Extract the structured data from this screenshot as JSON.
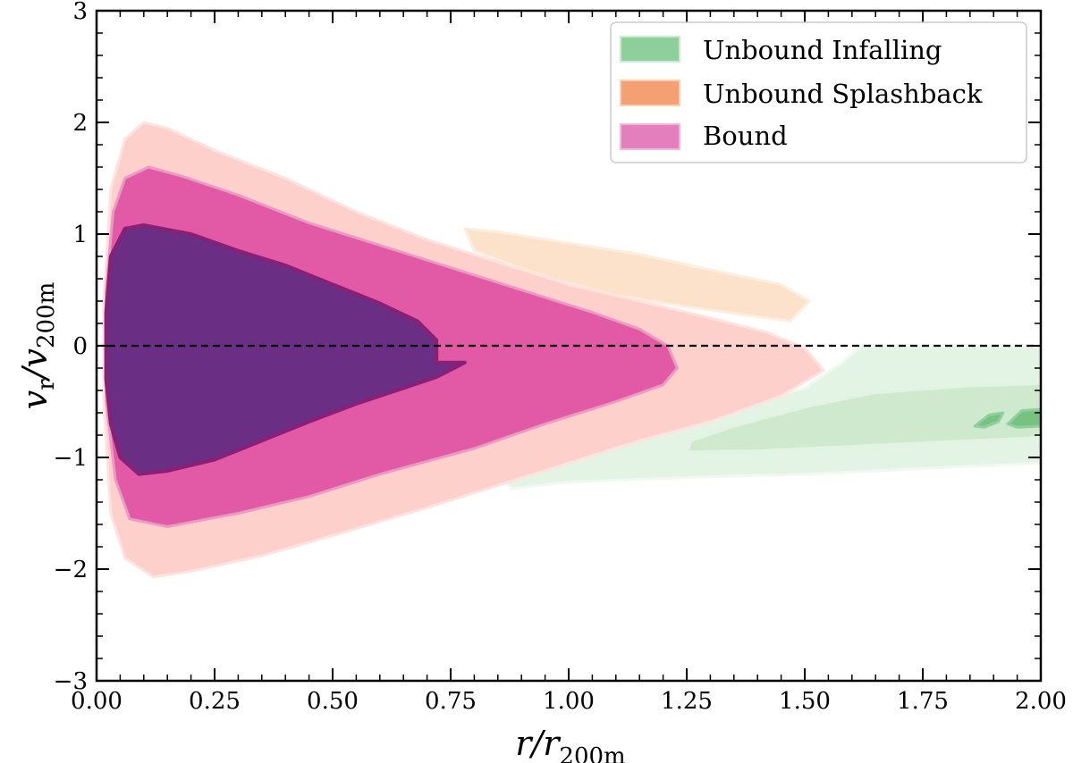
{
  "chart_data": {
    "type": "contour",
    "title": "",
    "xlabel": {
      "main": "r/r",
      "sub": "200m"
    },
    "ylabel": {
      "main": "v",
      "sub_r": "r",
      "slash": "/v",
      "sub_v": "200m"
    },
    "xlim": [
      0.0,
      2.0
    ],
    "ylim": [
      -3,
      3
    ],
    "xticks": [
      0.0,
      0.25,
      0.5,
      0.75,
      1.0,
      1.25,
      1.5,
      1.75,
      2.0
    ],
    "xtick_labels": [
      "0.00",
      "0.25",
      "0.50",
      "0.75",
      "1.00",
      "1.25",
      "1.50",
      "1.75",
      "2.00"
    ],
    "yticks": [
      -3,
      -2,
      -1,
      0,
      1,
      2,
      3
    ],
    "ytick_labels": [
      "−3",
      "−2",
      "−1",
      "0",
      "1",
      "2",
      "3"
    ],
    "reference_line": {
      "y": 0,
      "style": "dashed",
      "color": "#000000"
    },
    "legend": {
      "position": "top-right",
      "entries": [
        {
          "label": "Unbound Infalling",
          "color": "#8fcf9c",
          "edge": "#c9ebd0"
        },
        {
          "label": "Unbound Splashback",
          "color": "#f4a072",
          "edge": "#f9cfb2"
        },
        {
          "label": "Bound",
          "color": "#e27fbc",
          "edge": "#f3b7d9"
        }
      ]
    },
    "series": [
      {
        "name": "Bound",
        "levels": [
          {
            "level": "outer",
            "fill": "#fdd0cc",
            "edge": "#fde3df",
            "points": [
              [
                0.015,
                0.4
              ],
              [
                0.03,
                1.4
              ],
              [
                0.06,
                1.85
              ],
              [
                0.1,
                2.0
              ],
              [
                0.15,
                1.95
              ],
              [
                0.25,
                1.75
              ],
              [
                0.4,
                1.5
              ],
              [
                0.55,
                1.2
              ],
              [
                0.7,
                0.95
              ],
              [
                0.85,
                0.75
              ],
              [
                1.0,
                0.55
              ],
              [
                1.15,
                0.4
              ],
              [
                1.3,
                0.25
              ],
              [
                1.42,
                0.12
              ],
              [
                1.5,
                -0.02
              ],
              [
                1.54,
                -0.22
              ],
              [
                1.45,
                -0.45
              ],
              [
                1.3,
                -0.68
              ],
              [
                1.15,
                -0.85
              ],
              [
                1.0,
                -1.05
              ],
              [
                0.85,
                -1.25
              ],
              [
                0.7,
                -1.45
              ],
              [
                0.5,
                -1.7
              ],
              [
                0.35,
                -1.88
              ],
              [
                0.2,
                -2.02
              ],
              [
                0.12,
                -2.07
              ],
              [
                0.06,
                -1.9
              ],
              [
                0.03,
                -1.5
              ],
              [
                0.015,
                -0.5
              ]
            ]
          },
          {
            "level": "middle",
            "fill": "#e25aa6",
            "edge": "#eb9ac3",
            "points": [
              [
                0.02,
                0.5
              ],
              [
                0.035,
                1.2
              ],
              [
                0.06,
                1.5
              ],
              [
                0.11,
                1.6
              ],
              [
                0.18,
                1.52
              ],
              [
                0.3,
                1.35
              ],
              [
                0.45,
                1.1
              ],
              [
                0.6,
                0.9
              ],
              [
                0.75,
                0.7
              ],
              [
                0.9,
                0.5
              ],
              [
                1.05,
                0.3
              ],
              [
                1.15,
                0.15
              ],
              [
                1.21,
                0.0
              ],
              [
                1.23,
                -0.2
              ],
              [
                1.2,
                -0.35
              ],
              [
                1.1,
                -0.5
              ],
              [
                0.95,
                -0.7
              ],
              [
                0.8,
                -0.92
              ],
              [
                0.6,
                -1.15
              ],
              [
                0.45,
                -1.35
              ],
              [
                0.3,
                -1.5
              ],
              [
                0.15,
                -1.62
              ],
              [
                0.07,
                -1.55
              ],
              [
                0.04,
                -1.2
              ],
              [
                0.02,
                -0.5
              ]
            ]
          },
          {
            "level": "inner",
            "fill": "#6b2e85",
            "edge": "#8a1f76",
            "points": [
              [
                0.02,
                0.3
              ],
              [
                0.03,
                0.8
              ],
              [
                0.06,
                1.05
              ],
              [
                0.1,
                1.08
              ],
              [
                0.2,
                1.0
              ],
              [
                0.3,
                0.85
              ],
              [
                0.4,
                0.72
              ],
              [
                0.5,
                0.55
              ],
              [
                0.6,
                0.38
              ],
              [
                0.68,
                0.22
              ],
              [
                0.72,
                0.05
              ],
              [
                0.72,
                -0.15
              ],
              [
                0.78,
                -0.15
              ],
              [
                0.72,
                -0.28
              ],
              [
                0.65,
                -0.38
              ],
              [
                0.55,
                -0.52
              ],
              [
                0.45,
                -0.68
              ],
              [
                0.35,
                -0.85
              ],
              [
                0.25,
                -1.02
              ],
              [
                0.15,
                -1.12
              ],
              [
                0.09,
                -1.15
              ],
              [
                0.05,
                -1.0
              ],
              [
                0.03,
                -0.7
              ],
              [
                0.02,
                -0.3
              ]
            ]
          }
        ]
      },
      {
        "name": "Unbound Splashback",
        "levels": [
          {
            "level": "outer",
            "fill": "#fde2cb",
            "edge": "#fdeedf",
            "points": [
              [
                0.78,
                1.05
              ],
              [
                0.85,
                1.02
              ],
              [
                1.0,
                0.92
              ],
              [
                1.15,
                0.82
              ],
              [
                1.3,
                0.68
              ],
              [
                1.45,
                0.55
              ],
              [
                1.51,
                0.4
              ],
              [
                1.47,
                0.22
              ],
              [
                1.4,
                0.26
              ],
              [
                1.25,
                0.35
              ],
              [
                1.1,
                0.45
              ],
              [
                0.98,
                0.58
              ],
              [
                0.88,
                0.72
              ],
              [
                0.8,
                0.85
              ]
            ]
          }
        ]
      },
      {
        "name": "Unbound Infalling",
        "levels": [
          {
            "level": "outer",
            "fill": "#e4f4e4",
            "edge": "#f0f9f0",
            "points": [
              [
                0.86,
                -1.2
              ],
              [
                1.0,
                -0.92
              ],
              [
                1.15,
                -0.74
              ],
              [
                1.3,
                -0.6
              ],
              [
                1.5,
                -0.38
              ],
              [
                1.58,
                -0.15
              ],
              [
                1.62,
                0.0
              ],
              [
                2.0,
                0.0
              ],
              [
                2.0,
                -1.05
              ],
              [
                1.75,
                -1.1
              ],
              [
                1.5,
                -1.15
              ],
              [
                1.25,
                -1.18
              ],
              [
                1.0,
                -1.22
              ],
              [
                0.88,
                -1.28
              ]
            ]
          },
          {
            "level": "middle",
            "fill": "#cfe9cf",
            "edge": "#e2f3e2",
            "points": [
              [
                1.26,
                -0.85
              ],
              [
                1.35,
                -0.72
              ],
              [
                1.5,
                -0.55
              ],
              [
                1.65,
                -0.42
              ],
              [
                1.85,
                -0.36
              ],
              [
                2.0,
                -0.34
              ],
              [
                2.0,
                -0.82
              ],
              [
                1.8,
                -0.86
              ],
              [
                1.6,
                -0.9
              ],
              [
                1.4,
                -0.94
              ],
              [
                1.25,
                -0.95
              ]
            ]
          },
          {
            "level": "core",
            "fill": "#76c281",
            "edge": "#8fcf9c",
            "points": [
              [
                1.86,
                -0.72
              ],
              [
                1.89,
                -0.62
              ],
              [
                1.92,
                -0.6
              ],
              [
                1.91,
                -0.68
              ],
              [
                1.88,
                -0.73
              ]
            ]
          },
          {
            "level": "core",
            "fill": "#76c281",
            "edge": "#8fcf9c",
            "points": [
              [
                1.93,
                -0.7
              ],
              [
                1.96,
                -0.58
              ],
              [
                2.0,
                -0.57
              ],
              [
                2.0,
                -0.72
              ],
              [
                1.95,
                -0.73
              ]
            ]
          }
        ]
      }
    ]
  }
}
